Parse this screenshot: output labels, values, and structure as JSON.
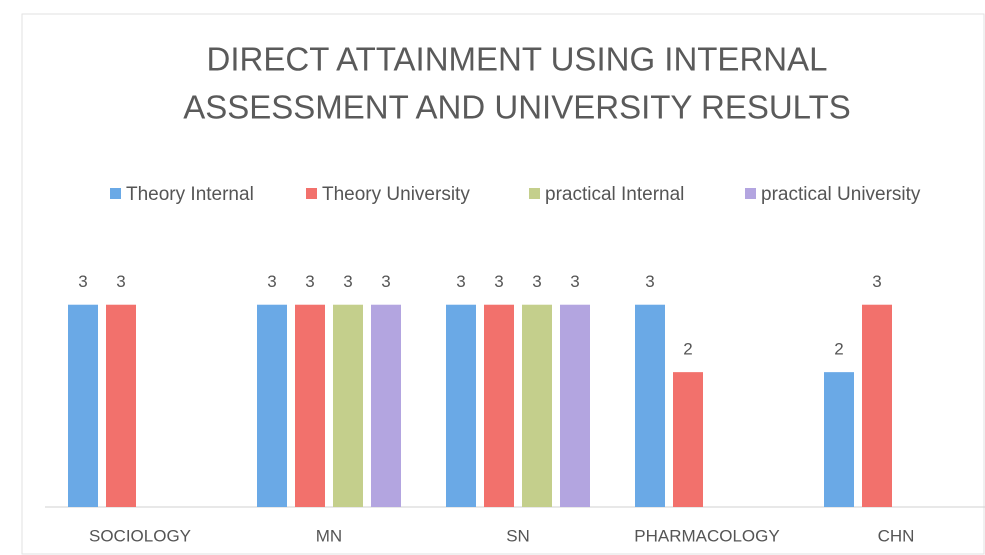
{
  "chart_data": {
    "type": "bar",
    "title": [
      "DIRECT ATTAINMENT USING INTERNAL",
      "ASSESSMENT AND UNIVERSITY RESULTS"
    ],
    "categories": [
      "SOCIOLOGY",
      "MN",
      "SN",
      "PHARMACOLOGY",
      "CHN"
    ],
    "series": [
      {
        "name": "Theory Internal",
        "color": "#6aa9e6",
        "values": [
          3,
          3,
          3,
          3,
          2
        ]
      },
      {
        "name": "Theory University",
        "color": "#f2716c",
        "values": [
          3,
          3,
          3,
          2,
          3
        ]
      },
      {
        "name": "practical Internal",
        "color": "#c4cf8c",
        "values": [
          null,
          3,
          3,
          null,
          null
        ]
      },
      {
        "name": "practical University",
        "color": "#b3a5e0",
        "values": [
          null,
          3,
          3,
          null,
          null
        ]
      }
    ],
    "ylim": [
      0,
      3.5
    ],
    "legend": "top"
  }
}
